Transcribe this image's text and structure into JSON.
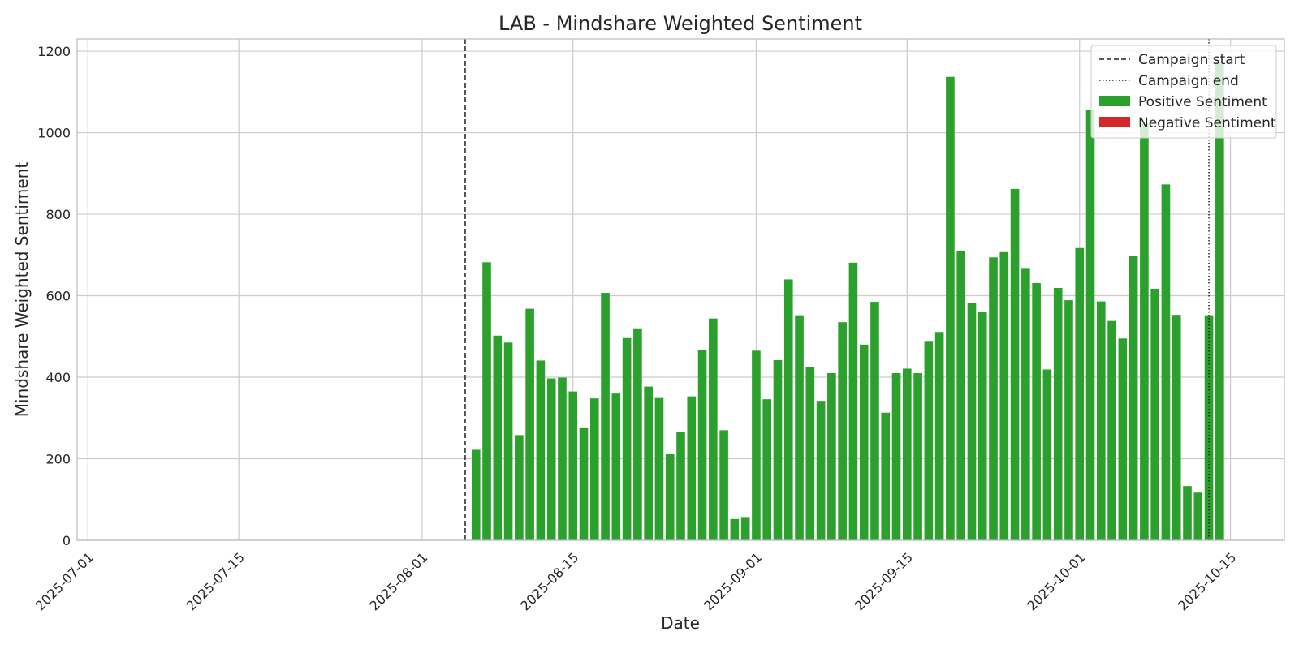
{
  "chart_data": {
    "type": "bar",
    "title": "LAB - Mindshare Weighted Sentiment",
    "xlabel": "Date",
    "ylabel": "Mindshare Weighted Sentiment",
    "xlim": [
      "2025-06-30",
      "2025-10-20"
    ],
    "ylim": [
      0,
      1230
    ],
    "yticks": [
      0,
      200,
      400,
      600,
      800,
      1000,
      1200
    ],
    "xticks": [
      "2025-07-01",
      "2025-07-15",
      "2025-08-01",
      "2025-08-15",
      "2025-09-01",
      "2025-09-15",
      "2025-10-01",
      "2025-10-15"
    ],
    "grid": true,
    "legend_position": "top-right",
    "colors": {
      "positive": "#2ca02c",
      "negative": "#d62728",
      "grid": "#cccccc",
      "line": "#222222"
    },
    "campaign_start": "2025-08-05",
    "campaign_end": "2025-10-13",
    "legend": [
      {
        "label": "Campaign start",
        "kind": "dashed"
      },
      {
        "label": "Campaign end",
        "kind": "dotted"
      },
      {
        "label": "Positive Sentiment",
        "kind": "positive"
      },
      {
        "label": "Negative Sentiment",
        "kind": "negative"
      }
    ],
    "series": [
      {
        "name": "Positive Sentiment",
        "dates": [
          "2025-08-06",
          "2025-08-07",
          "2025-08-08",
          "2025-08-09",
          "2025-08-10",
          "2025-08-11",
          "2025-08-12",
          "2025-08-13",
          "2025-08-14",
          "2025-08-15",
          "2025-08-16",
          "2025-08-17",
          "2025-08-18",
          "2025-08-19",
          "2025-08-20",
          "2025-08-21",
          "2025-08-22",
          "2025-08-23",
          "2025-08-24",
          "2025-08-25",
          "2025-08-26",
          "2025-08-27",
          "2025-08-28",
          "2025-08-29",
          "2025-08-30",
          "2025-08-31",
          "2025-09-01",
          "2025-09-02",
          "2025-09-03",
          "2025-09-04",
          "2025-09-05",
          "2025-09-06",
          "2025-09-07",
          "2025-09-08",
          "2025-09-09",
          "2025-09-10",
          "2025-09-11",
          "2025-09-12",
          "2025-09-13",
          "2025-09-14",
          "2025-09-15",
          "2025-09-16",
          "2025-09-17",
          "2025-09-18",
          "2025-09-19",
          "2025-09-20",
          "2025-09-21",
          "2025-09-22",
          "2025-09-23",
          "2025-09-24",
          "2025-09-25",
          "2025-09-26",
          "2025-09-27",
          "2025-09-28",
          "2025-09-29",
          "2025-09-30",
          "2025-10-01",
          "2025-10-02",
          "2025-10-03",
          "2025-10-04",
          "2025-10-05",
          "2025-10-06",
          "2025-10-07",
          "2025-10-08",
          "2025-10-09",
          "2025-10-10",
          "2025-10-11",
          "2025-10-12",
          "2025-10-13",
          "2025-10-14"
        ],
        "values": [
          222,
          682,
          502,
          485,
          258,
          568,
          441,
          397,
          399,
          365,
          277,
          348,
          607,
          360,
          496,
          520,
          377,
          351,
          211,
          266,
          353,
          467,
          544,
          270,
          52,
          57,
          465,
          346,
          442,
          640,
          552,
          426,
          342,
          410,
          535,
          681,
          480,
          585,
          313,
          410,
          421,
          410,
          489,
          511,
          1137,
          709,
          582,
          561,
          694,
          707,
          862,
          668,
          631,
          419,
          619,
          589,
          717,
          1055,
          586,
          538,
          495,
          697,
          1022,
          617,
          873,
          553,
          133,
          117,
          552,
          1172
        ]
      },
      {
        "name": "Negative Sentiment",
        "dates": [],
        "values": []
      }
    ]
  }
}
